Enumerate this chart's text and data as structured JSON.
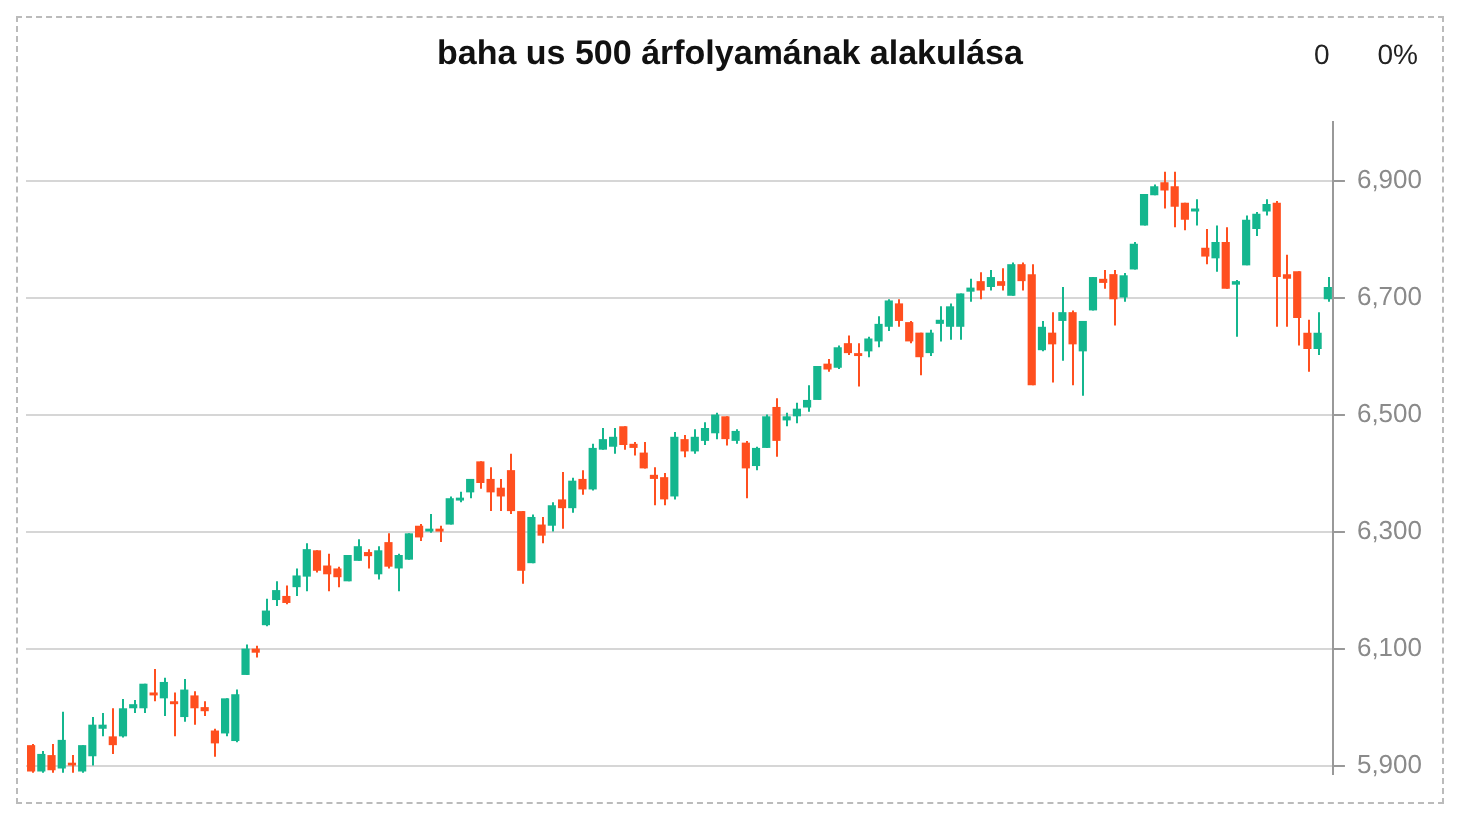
{
  "chart_data": {
    "type": "candlestick",
    "title": "baha us 500 árfolyamának alakulása",
    "annotations": [
      "0",
      "0%"
    ],
    "categories": [
      null,
      null,
      null,
      null,
      null,
      null,
      null,
      null,
      null,
      null,
      null,
      null,
      null,
      null,
      null,
      null,
      null,
      null,
      null,
      null,
      null,
      null,
      null,
      null,
      null,
      null,
      null,
      null,
      null,
      null,
      null,
      null,
      null,
      null,
      null,
      null,
      null,
      null,
      null,
      null,
      null,
      null,
      null,
      null,
      null,
      null,
      null,
      null,
      null,
      null,
      null,
      null,
      null,
      null,
      null,
      null,
      null,
      null,
      null,
      null,
      null,
      null,
      null,
      null,
      null,
      null,
      null,
      null,
      null,
      null,
      null,
      null,
      null,
      null,
      null,
      null,
      null,
      null,
      null,
      null,
      null,
      null,
      null,
      null,
      null,
      null,
      null,
      null,
      null,
      null,
      null,
      null,
      null,
      null,
      null,
      null,
      null,
      null,
      null,
      null,
      null,
      null,
      null,
      null,
      null,
      null,
      null,
      null,
      null,
      null,
      null,
      null,
      null,
      null,
      null,
      null,
      null,
      null,
      null,
      null,
      null,
      null,
      null,
      null,
      null,
      null,
      null,
      null
    ],
    "ohlc": [
      [
        5935,
        5937,
        5888,
        5890
      ],
      [
        5890,
        5925,
        5888,
        5920
      ],
      [
        5918,
        5937,
        5888,
        5892
      ],
      [
        5895,
        5992,
        5888,
        5944
      ],
      [
        5905,
        5918,
        5888,
        5900
      ],
      [
        5890,
        5935,
        5888,
        5935
      ],
      [
        5916,
        5983,
        5900,
        5970
      ],
      [
        5963,
        5990,
        5950,
        5970
      ],
      [
        5950,
        5998,
        5920,
        5935
      ],
      [
        5950,
        6014,
        5948,
        5998
      ],
      [
        5998,
        6012,
        5990,
        6005
      ],
      [
        5998,
        6040,
        5990,
        6040
      ],
      [
        6025,
        6065,
        6010,
        6020
      ],
      [
        6015,
        6050,
        5985,
        6043
      ],
      [
        6010,
        6025,
        5950,
        6005
      ],
      [
        5983,
        6048,
        5975,
        6030
      ],
      [
        6020,
        6027,
        5970,
        5998
      ],
      [
        6000,
        6010,
        5985,
        5993
      ],
      [
        5960,
        5963,
        5915,
        5938
      ],
      [
        5955,
        6015,
        5950,
        6015
      ],
      [
        5942,
        6030,
        5940,
        6022
      ],
      [
        6055,
        6107,
        6055,
        6100
      ],
      [
        6100,
        6105,
        6085,
        6093
      ],
      [
        6140,
        6185,
        6138,
        6165
      ],
      [
        6183,
        6215,
        6173,
        6200
      ],
      [
        6190,
        6208,
        6176,
        6178
      ],
      [
        6205,
        6237,
        6190,
        6225
      ],
      [
        6223,
        6280,
        6198,
        6270
      ],
      [
        6268,
        6268,
        6230,
        6233
      ],
      [
        6242,
        6262,
        6198,
        6227
      ],
      [
        6237,
        6240,
        6205,
        6222
      ],
      [
        6215,
        6260,
        6215,
        6260
      ],
      [
        6250,
        6287,
        6250,
        6275
      ],
      [
        6265,
        6270,
        6237,
        6258
      ],
      [
        6227,
        6275,
        6218,
        6268
      ],
      [
        6282,
        6297,
        6237,
        6240
      ],
      [
        6237,
        6262,
        6198,
        6260
      ],
      [
        6252,
        6297,
        6252,
        6297
      ],
      [
        6310,
        6313,
        6284,
        6290
      ],
      [
        6300,
        6330,
        6298,
        6305
      ],
      [
        6305,
        6310,
        6282,
        6300
      ],
      [
        6312,
        6360,
        6312,
        6357
      ],
      [
        6353,
        6368,
        6350,
        6358
      ],
      [
        6367,
        6390,
        6357,
        6390
      ],
      [
        6420,
        6420,
        6373,
        6383
      ],
      [
        6390,
        6410,
        6335,
        6367
      ],
      [
        6375,
        6390,
        6335,
        6360
      ],
      [
        6405,
        6433,
        6330,
        6335
      ],
      [
        6335,
        6335,
        6211,
        6233
      ],
      [
        6246,
        6329,
        6246,
        6325
      ],
      [
        6312,
        6325,
        6280,
        6293
      ],
      [
        6310,
        6350,
        6300,
        6345
      ],
      [
        6355,
        6402,
        6305,
        6340
      ],
      [
        6340,
        6392,
        6332,
        6387
      ],
      [
        6390,
        6405,
        6363,
        6372
      ],
      [
        6372,
        6450,
        6370,
        6443
      ],
      [
        6440,
        6477,
        6440,
        6458
      ],
      [
        6445,
        6477,
        6433,
        6462
      ],
      [
        6480,
        6480,
        6440,
        6448
      ],
      [
        6450,
        6453,
        6430,
        6443
      ],
      [
        6435,
        6453,
        6408,
        6408
      ],
      [
        6397,
        6410,
        6345,
        6390
      ],
      [
        6393,
        6400,
        6345,
        6355
      ],
      [
        6360,
        6470,
        6355,
        6462
      ],
      [
        6458,
        6465,
        6427,
        6437
      ],
      [
        6437,
        6475,
        6433,
        6462
      ],
      [
        6455,
        6487,
        6448,
        6477
      ],
      [
        6468,
        6503,
        6458,
        6500
      ],
      [
        6497,
        6497,
        6447,
        6458
      ],
      [
        6455,
        6475,
        6450,
        6472
      ],
      [
        6452,
        6455,
        6357,
        6408
      ],
      [
        6412,
        6445,
        6405,
        6443
      ],
      [
        6443,
        6500,
        6443,
        6497
      ],
      [
        6513,
        6528,
        6428,
        6455
      ],
      [
        6490,
        6503,
        6480,
        6497
      ],
      [
        6497,
        6520,
        6485,
        6510
      ],
      [
        6512,
        6550,
        6505,
        6525
      ],
      [
        6525,
        6583,
        6525,
        6583
      ],
      [
        6587,
        6595,
        6573,
        6577
      ],
      [
        6580,
        6618,
        6578,
        6615
      ],
      [
        6622,
        6635,
        6602,
        6605
      ],
      [
        6605,
        6622,
        6548,
        6600
      ],
      [
        6608,
        6633,
        6598,
        6630
      ],
      [
        6625,
        6668,
        6615,
        6655
      ],
      [
        6650,
        6697,
        6643,
        6695
      ],
      [
        6690,
        6697,
        6650,
        6660
      ],
      [
        6658,
        6660,
        6622,
        6625
      ],
      [
        6640,
        6640,
        6567,
        6598
      ],
      [
        6605,
        6645,
        6600,
        6640
      ],
      [
        6655,
        6685,
        6625,
        6662
      ],
      [
        6650,
        6690,
        6628,
        6685
      ],
      [
        6650,
        6707,
        6628,
        6707
      ],
      [
        6710,
        6732,
        6693,
        6717
      ],
      [
        6728,
        6743,
        6697,
        6712
      ],
      [
        6718,
        6747,
        6712,
        6735
      ],
      [
        6728,
        6750,
        6712,
        6720
      ],
      [
        6703,
        6760,
        6703,
        6757
      ],
      [
        6757,
        6760,
        6712,
        6728
      ],
      [
        6740,
        6757,
        6550,
        6550
      ],
      [
        6610,
        6660,
        6608,
        6650
      ],
      [
        6640,
        6675,
        6555,
        6620
      ],
      [
        6660,
        6718,
        6592,
        6675
      ],
      [
        6675,
        6678,
        6550,
        6620
      ],
      [
        6608,
        6660,
        6532,
        6660
      ],
      [
        6678,
        6735,
        6678,
        6735
      ],
      [
        6732,
        6747,
        6715,
        6725
      ],
      [
        6740,
        6747,
        6652,
        6697
      ],
      [
        6700,
        6742,
        6693,
        6738
      ],
      [
        6748,
        6795,
        6748,
        6792
      ],
      [
        6823,
        6877,
        6823,
        6877
      ],
      [
        6875,
        6893,
        6875,
        6890
      ],
      [
        6897,
        6915,
        6852,
        6883
      ],
      [
        6890,
        6915,
        6820,
        6855
      ],
      [
        6862,
        6862,
        6815,
        6833
      ],
      [
        6847,
        6868,
        6823,
        6852
      ],
      [
        6785,
        6817,
        6757,
        6770
      ],
      [
        6767,
        6823,
        6744,
        6795
      ],
      [
        6795,
        6820,
        6715,
        6715
      ],
      [
        6722,
        6730,
        6633,
        6728
      ],
      [
        6755,
        6840,
        6755,
        6833
      ],
      [
        6817,
        6846,
        6805,
        6843
      ],
      [
        6847,
        6868,
        6840,
        6860
      ],
      [
        6862,
        6865,
        6650,
        6735
      ],
      [
        6740,
        6773,
        6650,
        6732
      ],
      [
        6745,
        6745,
        6618,
        6665
      ],
      [
        6640,
        6662,
        6573,
        6612
      ],
      [
        6612,
        6675,
        6602,
        6640
      ],
      [
        6697,
        6735,
        6693,
        6718
      ]
    ],
    "colors": [
      "#ff4f1f",
      "#14b68e",
      "#ff4f1f",
      "#14b68e",
      "#ff4f1f",
      "#14b68e",
      "#14b68e",
      "#14b68e",
      "#ff4f1f",
      "#14b68e",
      "#14b68e",
      "#14b68e",
      "#ff4f1f",
      "#14b68e",
      "#ff4f1f",
      "#14b68e",
      "#ff4f1f",
      "#ff4f1f",
      "#ff4f1f",
      "#14b68e",
      "#14b68e",
      "#14b68e",
      "#ff4f1f",
      "#14b68e",
      "#14b68e",
      "#ff4f1f",
      "#14b68e",
      "#14b68e",
      "#ff4f1f",
      "#ff4f1f",
      "#ff4f1f",
      "#14b68e",
      "#14b68e",
      "#ff4f1f",
      "#14b68e",
      "#ff4f1f",
      "#14b68e",
      "#14b68e",
      "#ff4f1f",
      "#14b68e",
      "#ff4f1f",
      "#14b68e",
      "#14b68e",
      "#14b68e",
      "#ff4f1f",
      "#ff4f1f",
      "#ff4f1f",
      "#ff4f1f",
      "#ff4f1f",
      "#14b68e",
      "#ff4f1f",
      "#14b68e",
      "#ff4f1f",
      "#14b68e",
      "#ff4f1f",
      "#14b68e",
      "#14b68e",
      "#14b68e",
      "#ff4f1f",
      "#ff4f1f",
      "#ff4f1f",
      "#ff4f1f",
      "#ff4f1f",
      "#14b68e",
      "#ff4f1f",
      "#14b68e",
      "#14b68e",
      "#14b68e",
      "#ff4f1f",
      "#14b68e",
      "#ff4f1f",
      "#14b68e",
      "#14b68e",
      "#ff4f1f",
      "#14b68e",
      "#14b68e",
      "#14b68e",
      "#14b68e",
      "#ff4f1f",
      "#14b68e",
      "#ff4f1f",
      "#ff4f1f",
      "#14b68e",
      "#14b68e",
      "#14b68e",
      "#ff4f1f",
      "#ff4f1f",
      "#ff4f1f",
      "#14b68e",
      "#14b68e",
      "#14b68e",
      "#14b68e",
      "#14b68e",
      "#ff4f1f",
      "#14b68e",
      "#ff4f1f",
      "#14b68e",
      "#ff4f1f",
      "#ff4f1f",
      "#14b68e",
      "#ff4f1f",
      "#14b68e",
      "#ff4f1f",
      "#14b68e",
      "#14b68e",
      "#ff4f1f",
      "#ff4f1f",
      "#14b68e",
      "#14b68e",
      "#14b68e",
      "#14b68e",
      "#ff4f1f",
      "#ff4f1f",
      "#ff4f1f",
      "#14b68e",
      "#ff4f1f",
      "#14b68e",
      "#ff4f1f",
      "#14b68e",
      "#14b68e",
      "#14b68e",
      "#14b68e",
      "#ff4f1f",
      "#ff4f1f",
      "#ff4f1f",
      "#ff4f1f",
      "#14b68e",
      "#14b68e"
    ],
    "ylim": [
      5885,
      7000
    ],
    "yticks": [
      {
        "value": 5900,
        "label": "5,900"
      },
      {
        "value": 6100,
        "label": "6,100"
      },
      {
        "value": 6300,
        "label": "6,300"
      },
      {
        "value": 6500,
        "label": "6,500"
      },
      {
        "value": 6700,
        "label": "6,700"
      },
      {
        "value": 6900,
        "label": "6,900"
      }
    ],
    "grid": "y",
    "tick_labels": "y",
    "legend": false
  }
}
